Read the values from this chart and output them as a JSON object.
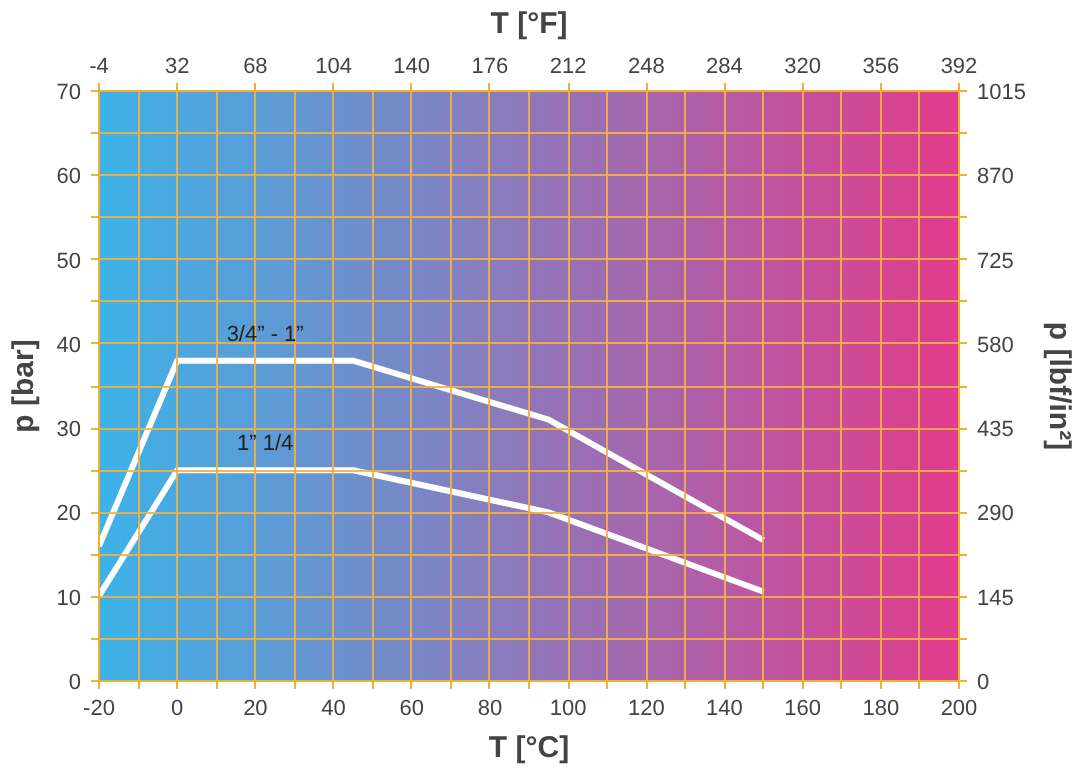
{
  "chart_data": {
    "type": "line",
    "xlabel": "T [°C]",
    "ylabel": "p [bar]",
    "y2label": "p [lbf/in²]",
    "x2label": "T [°F]",
    "x": [
      -20,
      0,
      45,
      95,
      150
    ],
    "series": [
      {
        "name": "3/4” - 1”",
        "color": "#ffffff",
        "values": [
          16,
          38,
          38,
          31,
          16.7
        ]
      },
      {
        "name": "1” 1/4",
        "color": "#ffffff",
        "values": [
          10.1,
          25,
          25,
          20,
          10.6
        ]
      }
    ],
    "xlim": [
      -20,
      200
    ],
    "xticks": [
      -20,
      {
        "value": -10,
        "label": null
      },
      0,
      {
        "value": 10,
        "label": null
      },
      20,
      {
        "value": 30,
        "label": null
      },
      40,
      {
        "value": 50,
        "label": null
      },
      60,
      {
        "value": 70,
        "label": null
      },
      80,
      {
        "value": 90,
        "label": null
      },
      100,
      {
        "value": 110,
        "label": null
      },
      120,
      {
        "value": 130,
        "label": null
      },
      140,
      {
        "value": 150,
        "label": null
      },
      160,
      {
        "value": 170,
        "label": null
      },
      180,
      {
        "value": 190,
        "label": null
      },
      200
    ],
    "ylim": [
      0,
      70
    ],
    "yticks": [
      0,
      {
        "value": 5,
        "label": null
      },
      10,
      {
        "value": 15,
        "label": null
      },
      20,
      {
        "value": 25,
        "label": null
      },
      30,
      {
        "value": 35,
        "label": null
      },
      40,
      {
        "value": 45,
        "label": null
      },
      50,
      {
        "value": 55,
        "label": null
      },
      60,
      {
        "value": 65,
        "label": null
      },
      70
    ],
    "y2lim": [
      0,
      1015
    ],
    "y2ticks": [
      0,
      {
        "value": 72.5,
        "label": null
      },
      145,
      {
        "value": 217.5,
        "label": null
      },
      290,
      {
        "value": 362.5,
        "label": null
      },
      435,
      {
        "value": 507.5,
        "label": null
      },
      580,
      {
        "value": 652.5,
        "label": null
      },
      725,
      {
        "value": 797.5,
        "label": null
      },
      870,
      {
        "value": 942.5,
        "label": null
      },
      1015
    ],
    "x2lim": [
      -4,
      392
    ],
    "x2ticks": [
      -4,
      32,
      68,
      104,
      140,
      176,
      212,
      248,
      284,
      320,
      356,
      392
    ],
    "grid": true,
    "marker": "none",
    "line_style": "solid"
  }
}
